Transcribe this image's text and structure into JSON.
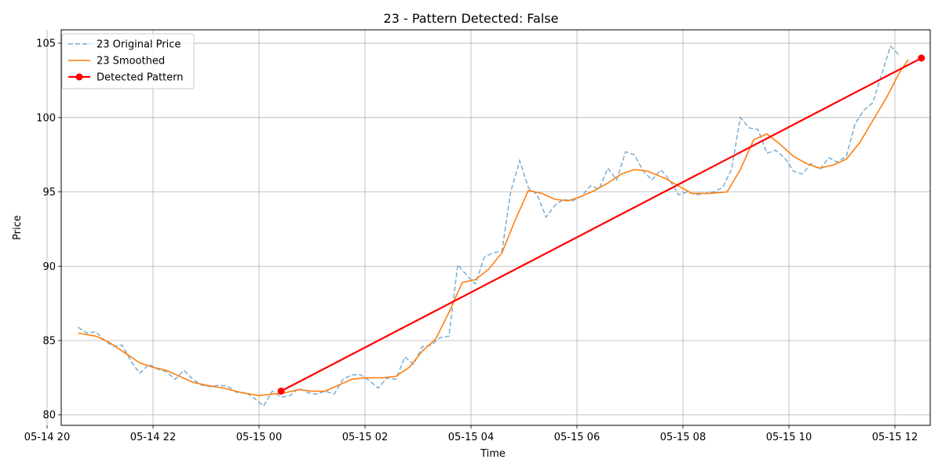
{
  "chart_data": {
    "type": "line",
    "title": "23 - Pattern Detected: False",
    "xlabel": "Time",
    "ylabel": "Price",
    "xlim": [
      "2024-05-14T20:16",
      "2024-05-15T12:40"
    ],
    "ylim": [
      79.3,
      105.9
    ],
    "grid": true,
    "legend_position": "top-left",
    "x_ticks": [
      {
        "t": "2024-05-14T20:00",
        "label": "05-14 20"
      },
      {
        "t": "2024-05-14T22:00",
        "label": "05-14 22"
      },
      {
        "t": "2024-05-15T00:00",
        "label": "05-15 00"
      },
      {
        "t": "2024-05-15T02:00",
        "label": "05-15 02"
      },
      {
        "t": "2024-05-15T04:00",
        "label": "05-15 04"
      },
      {
        "t": "2024-05-15T06:00",
        "label": "05-15 06"
      },
      {
        "t": "2024-05-15T08:00",
        "label": "05-15 08"
      },
      {
        "t": "2024-05-15T10:00",
        "label": "05-15 10"
      },
      {
        "t": "2024-05-15T12:00",
        "label": "05-15 12"
      }
    ],
    "y_ticks": [
      80,
      85,
      90,
      95,
      100,
      105
    ],
    "series": [
      {
        "name": "23 Original Price",
        "color": "#1f77b4",
        "style": "dashed",
        "points": [
          [
            "2024-05-14T20:35",
            85.9
          ],
          [
            "2024-05-14T20:45",
            85.5
          ],
          [
            "2024-05-14T20:55",
            85.6
          ],
          [
            "2024-05-14T21:05",
            85.0
          ],
          [
            "2024-05-14T21:15",
            84.6
          ],
          [
            "2024-05-14T21:25",
            84.7
          ],
          [
            "2024-05-14T21:35",
            83.6
          ],
          [
            "2024-05-14T21:45",
            82.8
          ],
          [
            "2024-05-14T21:55",
            83.4
          ],
          [
            "2024-05-14T22:05",
            83.1
          ],
          [
            "2024-05-14T22:15",
            82.9
          ],
          [
            "2024-05-14T22:25",
            82.4
          ],
          [
            "2024-05-14T22:35",
            83.0
          ],
          [
            "2024-05-14T22:45",
            82.4
          ],
          [
            "2024-05-14T22:55",
            82.0
          ],
          [
            "2024-05-14T23:05",
            81.9
          ],
          [
            "2024-05-14T23:15",
            82.0
          ],
          [
            "2024-05-14T23:25",
            81.9
          ],
          [
            "2024-05-14T23:35",
            81.5
          ],
          [
            "2024-05-14T23:45",
            81.5
          ],
          [
            "2024-05-14T23:55",
            81.1
          ],
          [
            "2024-05-15T00:05",
            80.6
          ],
          [
            "2024-05-15T00:15",
            81.6
          ],
          [
            "2024-05-15T00:25",
            81.2
          ],
          [
            "2024-05-15T00:35",
            81.3
          ],
          [
            "2024-05-15T00:45",
            81.8
          ],
          [
            "2024-05-15T00:55",
            81.5
          ],
          [
            "2024-05-15T01:05",
            81.4
          ],
          [
            "2024-05-15T01:15",
            81.6
          ],
          [
            "2024-05-15T01:25",
            81.4
          ],
          [
            "2024-05-15T01:35",
            82.4
          ],
          [
            "2024-05-15T01:45",
            82.7
          ],
          [
            "2024-05-15T01:55",
            82.7
          ],
          [
            "2024-05-15T02:05",
            82.3
          ],
          [
            "2024-05-15T02:15",
            81.8
          ],
          [
            "2024-05-15T02:25",
            82.5
          ],
          [
            "2024-05-15T02:35",
            82.4
          ],
          [
            "2024-05-15T02:45",
            83.9
          ],
          [
            "2024-05-15T02:55",
            83.4
          ],
          [
            "2024-05-15T03:05",
            84.6
          ],
          [
            "2024-05-15T03:15",
            84.7
          ],
          [
            "2024-05-15T03:25",
            85.2
          ],
          [
            "2024-05-15T03:35",
            85.3
          ],
          [
            "2024-05-15T03:45",
            90.1
          ],
          [
            "2024-05-15T03:55",
            89.4
          ],
          [
            "2024-05-15T04:05",
            88.8
          ],
          [
            "2024-05-15T04:15",
            90.6
          ],
          [
            "2024-05-15T04:25",
            90.9
          ],
          [
            "2024-05-15T04:35",
            91.0
          ],
          [
            "2024-05-15T04:45",
            95.0
          ],
          [
            "2024-05-15T04:55",
            97.1
          ],
          [
            "2024-05-15T05:05",
            95.3
          ],
          [
            "2024-05-15T05:15",
            94.8
          ],
          [
            "2024-05-15T05:25",
            93.3
          ],
          [
            "2024-05-15T05:35",
            94.1
          ],
          [
            "2024-05-15T05:45",
            94.5
          ],
          [
            "2024-05-15T05:55",
            94.4
          ],
          [
            "2024-05-15T06:05",
            94.7
          ],
          [
            "2024-05-15T06:15",
            95.4
          ],
          [
            "2024-05-15T06:25",
            95.2
          ],
          [
            "2024-05-15T06:35",
            96.6
          ],
          [
            "2024-05-15T06:45",
            95.8
          ],
          [
            "2024-05-15T06:55",
            97.7
          ],
          [
            "2024-05-15T07:05",
            97.5
          ],
          [
            "2024-05-15T07:15",
            96.4
          ],
          [
            "2024-05-15T07:25",
            95.8
          ],
          [
            "2024-05-15T07:35",
            96.5
          ],
          [
            "2024-05-15T07:45",
            95.8
          ],
          [
            "2024-05-15T07:55",
            94.8
          ],
          [
            "2024-05-15T08:05",
            95.0
          ],
          [
            "2024-05-15T08:15",
            94.8
          ],
          [
            "2024-05-15T08:25",
            94.9
          ],
          [
            "2024-05-15T08:35",
            95.0
          ],
          [
            "2024-05-15T08:45",
            95.3
          ],
          [
            "2024-05-15T08:55",
            96.5
          ],
          [
            "2024-05-15T09:05",
            100.0
          ],
          [
            "2024-05-15T09:15",
            99.3
          ],
          [
            "2024-05-15T09:25",
            99.2
          ],
          [
            "2024-05-15T09:35",
            97.6
          ],
          [
            "2024-05-15T09:45",
            97.8
          ],
          [
            "2024-05-15T09:55",
            97.3
          ],
          [
            "2024-05-15T10:05",
            96.4
          ],
          [
            "2024-05-15T10:15",
            96.2
          ],
          [
            "2024-05-15T10:25",
            96.9
          ],
          [
            "2024-05-15T10:35",
            96.5
          ],
          [
            "2024-05-15T10:45",
            97.3
          ],
          [
            "2024-05-15T10:55",
            97.0
          ],
          [
            "2024-05-15T11:05",
            97.4
          ],
          [
            "2024-05-15T11:15",
            99.6
          ],
          [
            "2024-05-15T11:25",
            100.5
          ],
          [
            "2024-05-15T11:35",
            101.0
          ],
          [
            "2024-05-15T11:45",
            102.9
          ],
          [
            "2024-05-15T11:55",
            104.8
          ],
          [
            "2024-05-15T12:05",
            104.2
          ]
        ]
      },
      {
        "name": "23 Smoothed",
        "color": "#ff7f0e",
        "style": "solid",
        "points": [
          [
            "2024-05-14T20:35",
            85.5
          ],
          [
            "2024-05-14T20:55",
            85.3
          ],
          [
            "2024-05-14T21:10",
            84.9
          ],
          [
            "2024-05-14T21:25",
            84.3
          ],
          [
            "2024-05-14T21:45",
            83.5
          ],
          [
            "2024-05-14T22:00",
            83.2
          ],
          [
            "2024-05-14T22:15",
            83.0
          ],
          [
            "2024-05-14T22:30",
            82.6
          ],
          [
            "2024-05-14T22:45",
            82.2
          ],
          [
            "2024-05-14T23:00",
            82.0
          ],
          [
            "2024-05-14T23:20",
            81.8
          ],
          [
            "2024-05-14T23:40",
            81.5
          ],
          [
            "2024-05-15T00:00",
            81.3
          ],
          [
            "2024-05-15T00:15",
            81.4
          ],
          [
            "2024-05-15T00:30",
            81.5
          ],
          [
            "2024-05-15T00:45",
            81.7
          ],
          [
            "2024-05-15T01:00",
            81.6
          ],
          [
            "2024-05-15T01:15",
            81.6
          ],
          [
            "2024-05-15T01:30",
            82.0
          ],
          [
            "2024-05-15T01:45",
            82.4
          ],
          [
            "2024-05-15T02:00",
            82.5
          ],
          [
            "2024-05-15T02:20",
            82.5
          ],
          [
            "2024-05-15T02:35",
            82.6
          ],
          [
            "2024-05-15T02:50",
            83.2
          ],
          [
            "2024-05-15T03:05",
            84.3
          ],
          [
            "2024-05-15T03:20",
            85.1
          ],
          [
            "2024-05-15T03:35",
            86.9
          ],
          [
            "2024-05-15T03:50",
            88.9
          ],
          [
            "2024-05-15T04:05",
            89.1
          ],
          [
            "2024-05-15T04:20",
            89.8
          ],
          [
            "2024-05-15T04:35",
            90.9
          ],
          [
            "2024-05-15T04:50",
            93.1
          ],
          [
            "2024-05-15T05:05",
            95.1
          ],
          [
            "2024-05-15T05:20",
            94.9
          ],
          [
            "2024-05-15T05:35",
            94.5
          ],
          [
            "2024-05-15T05:50",
            94.4
          ],
          [
            "2024-05-15T06:05",
            94.7
          ],
          [
            "2024-05-15T06:20",
            95.1
          ],
          [
            "2024-05-15T06:35",
            95.6
          ],
          [
            "2024-05-15T06:50",
            96.2
          ],
          [
            "2024-05-15T07:05",
            96.5
          ],
          [
            "2024-05-15T07:20",
            96.4
          ],
          [
            "2024-05-15T07:40",
            95.9
          ],
          [
            "2024-05-15T07:55",
            95.4
          ],
          [
            "2024-05-15T08:10",
            94.9
          ],
          [
            "2024-05-15T08:30",
            94.9
          ],
          [
            "2024-05-15T08:50",
            95.0
          ],
          [
            "2024-05-15T09:05",
            96.5
          ],
          [
            "2024-05-15T09:20",
            98.5
          ],
          [
            "2024-05-15T09:35",
            98.9
          ],
          [
            "2024-05-15T09:50",
            98.2
          ],
          [
            "2024-05-15T10:05",
            97.4
          ],
          [
            "2024-05-15T10:20",
            96.9
          ],
          [
            "2024-05-15T10:35",
            96.6
          ],
          [
            "2024-05-15T10:50",
            96.8
          ],
          [
            "2024-05-15T11:05",
            97.2
          ],
          [
            "2024-05-15T11:20",
            98.3
          ],
          [
            "2024-05-15T11:35",
            99.8
          ],
          [
            "2024-05-15T11:50",
            101.3
          ],
          [
            "2024-05-15T12:05",
            103.0
          ],
          [
            "2024-05-15T12:15",
            103.9
          ]
        ]
      },
      {
        "name": "Detected Pattern",
        "color": "#ff0000",
        "style": "solid-markers",
        "points": [
          [
            "2024-05-15T00:25",
            81.6
          ],
          [
            "2024-05-15T12:30",
            104.0
          ]
        ]
      }
    ]
  }
}
